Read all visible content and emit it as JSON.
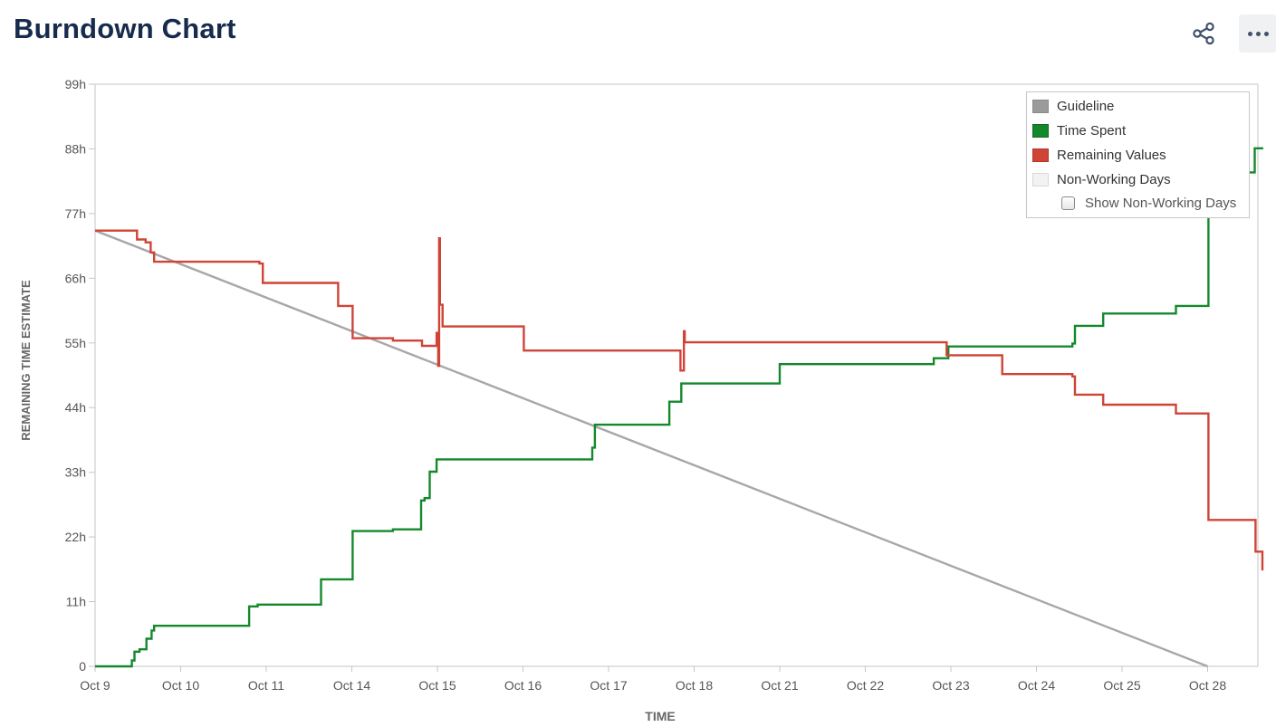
{
  "page": {
    "title": "Burndown Chart",
    "actions": [
      {
        "icon": "share-icon"
      },
      {
        "icon": "more-options-icon"
      }
    ]
  },
  "legend": {
    "items": [
      {
        "label": "Guideline",
        "color": "#9b9b9b"
      },
      {
        "label": "Time Spent",
        "color": "#14892c"
      },
      {
        "label": "Remaining Values",
        "color": "#d04437"
      },
      {
        "label": "Non-Working Days",
        "color": "#f2f2f2"
      }
    ],
    "checkbox_label": "Show Non-Working Days",
    "checkbox_checked": false
  },
  "chart_data": {
    "type": "line",
    "xlabel": "TIME",
    "ylabel": "REMAINING TIME ESTIMATE",
    "x_ticks": [
      "Oct 9",
      "Oct 10",
      "Oct 11",
      "Oct 14",
      "Oct 15",
      "Oct 16",
      "Oct 17",
      "Oct 18",
      "Oct 21",
      "Oct 22",
      "Oct 23",
      "Oct 24",
      "Oct 25",
      "Oct 28"
    ],
    "y_ticks": [
      "0",
      "11h",
      "22h",
      "33h",
      "44h",
      "55h",
      "66h",
      "77h",
      "88h",
      "99h"
    ],
    "ylim": [
      0,
      99
    ],
    "xlim": [
      0,
      13.65
    ],
    "legend_position": "top-right",
    "grid": false,
    "series": [
      {
        "name": "Guideline",
        "color": "#a8a6a8",
        "points": [
          [
            0,
            74.1
          ],
          [
            13,
            0
          ]
        ]
      },
      {
        "name": "Time Spent",
        "color": "#14892c",
        "points": [
          [
            0,
            0
          ],
          [
            0.43,
            0
          ],
          [
            0.43,
            1
          ],
          [
            0.46,
            1
          ],
          [
            0.46,
            2.5
          ],
          [
            0.52,
            2.5
          ],
          [
            0.52,
            2.9
          ],
          [
            0.6,
            2.9
          ],
          [
            0.6,
            4.7
          ],
          [
            0.66,
            4.7
          ],
          [
            0.66,
            6.1
          ],
          [
            0.69,
            6.1
          ],
          [
            0.69,
            6.9
          ],
          [
            1.8,
            6.9
          ],
          [
            1.8,
            10.2
          ],
          [
            1.9,
            10.2
          ],
          [
            1.9,
            10.5
          ],
          [
            2.64,
            10.5
          ],
          [
            2.64,
            14.8
          ],
          [
            3.01,
            14.8
          ],
          [
            3.01,
            23
          ],
          [
            3.48,
            23
          ],
          [
            3.48,
            23.3
          ],
          [
            3.81,
            23.3
          ],
          [
            3.81,
            28.2
          ],
          [
            3.85,
            28.2
          ],
          [
            3.85,
            28.6
          ],
          [
            3.91,
            28.6
          ],
          [
            3.91,
            33.1
          ],
          [
            3.99,
            33.1
          ],
          [
            3.99,
            35.2
          ],
          [
            5.81,
            35.2
          ],
          [
            5.81,
            37.2
          ],
          [
            5.84,
            37.2
          ],
          [
            5.84,
            41.1
          ],
          [
            6.71,
            41.1
          ],
          [
            6.71,
            45
          ],
          [
            6.85,
            45
          ],
          [
            6.85,
            48.1
          ],
          [
            8,
            48.1
          ],
          [
            8,
            51.4
          ],
          [
            9.8,
            51.4
          ],
          [
            9.8,
            52.4
          ],
          [
            9.97,
            52.4
          ],
          [
            9.97,
            54.4
          ],
          [
            11.42,
            54.4
          ],
          [
            11.42,
            54.9
          ],
          [
            11.45,
            54.9
          ],
          [
            11.45,
            57.9
          ],
          [
            11.78,
            57.9
          ],
          [
            11.78,
            60
          ],
          [
            12.63,
            60
          ],
          [
            12.63,
            61.3
          ],
          [
            13.01,
            61.3
          ],
          [
            13.01,
            84
          ],
          [
            13.55,
            84
          ],
          [
            13.55,
            88.1
          ],
          [
            13.65,
            88.1
          ]
        ]
      },
      {
        "name": "Remaining Values",
        "color": "#d04437",
        "points": [
          [
            0,
            74.1
          ],
          [
            0.49,
            74.1
          ],
          [
            0.49,
            72.6
          ],
          [
            0.59,
            72.6
          ],
          [
            0.59,
            72.1
          ],
          [
            0.65,
            72.1
          ],
          [
            0.65,
            70.4
          ],
          [
            0.69,
            70.4
          ],
          [
            0.69,
            68.8
          ],
          [
            1.92,
            68.8
          ],
          [
            1.92,
            68.5
          ],
          [
            1.96,
            68.5
          ],
          [
            1.96,
            65.2
          ],
          [
            2.84,
            65.2
          ],
          [
            2.84,
            61.3
          ],
          [
            3.01,
            61.3
          ],
          [
            3.01,
            55.8
          ],
          [
            3.48,
            55.8
          ],
          [
            3.48,
            55.4
          ],
          [
            3.82,
            55.4
          ],
          [
            3.82,
            54.5
          ],
          [
            3.99,
            54.5
          ],
          [
            3.99,
            56.7
          ],
          [
            4.01,
            56.7
          ],
          [
            4.01,
            51.1
          ],
          [
            4.02,
            51.1
          ],
          [
            4.02,
            72.8
          ],
          [
            4.03,
            72.8
          ],
          [
            4.03,
            61.5
          ],
          [
            4.06,
            61.5
          ],
          [
            4.06,
            57.8
          ],
          [
            5.01,
            57.8
          ],
          [
            5.01,
            53.7
          ],
          [
            6.84,
            53.7
          ],
          [
            6.84,
            50.3
          ],
          [
            6.88,
            50.3
          ],
          [
            6.88,
            57
          ],
          [
            6.89,
            57
          ],
          [
            6.89,
            55.1
          ],
          [
            9.95,
            55.1
          ],
          [
            9.95,
            52.9
          ],
          [
            10.6,
            52.9
          ],
          [
            10.6,
            49.7
          ],
          [
            11.42,
            49.7
          ],
          [
            11.42,
            49.3
          ],
          [
            11.45,
            49.3
          ],
          [
            11.45,
            46.2
          ],
          [
            11.78,
            46.2
          ],
          [
            11.78,
            44.5
          ],
          [
            12.63,
            44.5
          ],
          [
            12.63,
            43
          ],
          [
            13.01,
            43
          ],
          [
            13.01,
            24.9
          ],
          [
            13.56,
            24.9
          ],
          [
            13.56,
            19.5
          ],
          [
            13.64,
            19.5
          ],
          [
            13.64,
            16.3
          ]
        ]
      }
    ]
  }
}
